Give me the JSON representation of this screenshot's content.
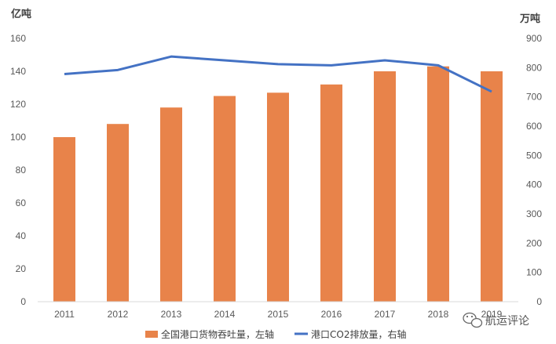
{
  "chart_data": {
    "type": "bar",
    "categories": [
      "2011",
      "2012",
      "2013",
      "2014",
      "2015",
      "2016",
      "2017",
      "2018",
      "2019"
    ],
    "series": [
      {
        "name": "全国港口货物吞吐量，左轴",
        "type": "bar",
        "axis": "left",
        "color": "#E8834A",
        "values": [
          100,
          108,
          118,
          125,
          127,
          132,
          140,
          143,
          140
        ]
      },
      {
        "name": "港口CO2排放量，右轴",
        "type": "line",
        "axis": "right",
        "color": "#4472C4",
        "values": [
          778,
          792,
          838,
          825,
          812,
          808,
          825,
          808,
          718
        ]
      }
    ],
    "left_axis": {
      "unit": "亿吨",
      "ylim": [
        0,
        160
      ],
      "ticks": [
        0,
        20,
        40,
        60,
        80,
        100,
        120,
        140,
        160
      ]
    },
    "right_axis": {
      "unit": "万吨",
      "ylim": [
        0,
        900
      ],
      "ticks": [
        0,
        100,
        200,
        300,
        400,
        500,
        600,
        700,
        800,
        900
      ]
    },
    "grid": false,
    "legend_position": "bottom"
  },
  "watermark": {
    "text": "航运评论",
    "icon": "wechat-icon"
  }
}
